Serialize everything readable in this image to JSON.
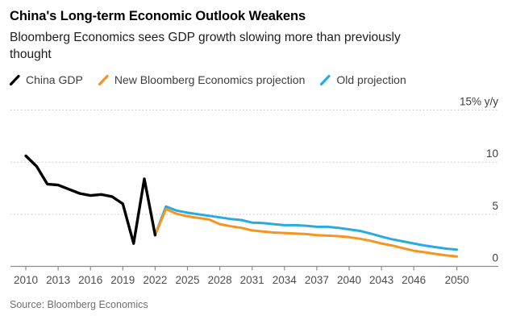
{
  "header": {
    "title": "China's Long-term Economic Outlook Weakens",
    "subtitle": "Bloomberg Economics sees GDP growth slowing more than previously thought"
  },
  "legend": {
    "items": [
      {
        "label": "China GDP",
        "color": "#000000"
      },
      {
        "label": "New Bloomberg Economics projection",
        "color": "#f7941e"
      },
      {
        "label": "Old projection",
        "color": "#29abe2"
      }
    ]
  },
  "footer": {
    "source": "Source: Bloomberg Economics"
  },
  "colors": {
    "actual_line": "#000000",
    "new_projection_line": "#f7941e",
    "old_projection_line": "#29abe2",
    "gridline": "#c3c3c3",
    "axis_line": "#8c8c8c"
  },
  "chart_data": {
    "type": "line",
    "title": "China's Long-term Economic Outlook Weakens",
    "subtitle": "Bloomberg Economics sees GDP growth slowing more than previously thought",
    "ylabel": "% y/y",
    "ylim": [
      0,
      15
    ],
    "xlim": [
      2008.5,
      2051.5
    ],
    "grid": "horizontal-dotted",
    "legend_position": "top-left",
    "y_ticks": [
      {
        "value": 15,
        "label": "15% y/y"
      },
      {
        "value": 10,
        "label": "10"
      },
      {
        "value": 5,
        "label": "5"
      },
      {
        "value": 0,
        "label": "0"
      }
    ],
    "x_ticks": [
      2010,
      2013,
      2016,
      2019,
      2022,
      2025,
      2028,
      2031,
      2034,
      2037,
      2040,
      2043,
      2046,
      2050
    ],
    "series": [
      {
        "name": "China GDP",
        "color": "#000000",
        "width": 3.4,
        "x": [
          2010,
          2011,
          2012,
          2013,
          2014,
          2015,
          2016,
          2017,
          2018,
          2019,
          2020,
          2021,
          2022
        ],
        "values": [
          10.6,
          9.6,
          7.9,
          7.8,
          7.4,
          7.0,
          6.8,
          6.9,
          6.7,
          6.0,
          2.2,
          8.4,
          3.0
        ]
      },
      {
        "name": "New Bloomberg Economics projection",
        "color": "#f7941e",
        "width": 3,
        "x": [
          2022,
          2023,
          2024,
          2025,
          2026,
          2027,
          2028,
          2029,
          2030,
          2031,
          2032,
          2033,
          2034,
          2035,
          2036,
          2037,
          2038,
          2039,
          2040,
          2041,
          2042,
          2043,
          2044,
          2045,
          2046,
          2047,
          2048,
          2049,
          2050
        ],
        "values": [
          3.0,
          5.5,
          5.05,
          4.8,
          4.65,
          4.5,
          4.05,
          3.85,
          3.7,
          3.45,
          3.35,
          3.25,
          3.2,
          3.15,
          3.1,
          3.0,
          2.95,
          2.9,
          2.8,
          2.65,
          2.45,
          2.2,
          2.0,
          1.75,
          1.5,
          1.35,
          1.2,
          1.05,
          0.95
        ]
      },
      {
        "name": "Old projection",
        "color": "#29abe2",
        "width": 3,
        "x": [
          2022,
          2023,
          2024,
          2025,
          2026,
          2027,
          2028,
          2029,
          2030,
          2031,
          2032,
          2033,
          2034,
          2035,
          2036,
          2037,
          2038,
          2039,
          2040,
          2041,
          2042,
          2043,
          2044,
          2045,
          2046,
          2047,
          2048,
          2049,
          2050
        ],
        "values": [
          3.0,
          5.75,
          5.35,
          5.15,
          5.0,
          4.85,
          4.7,
          4.55,
          4.45,
          4.2,
          4.15,
          4.05,
          3.95,
          3.95,
          3.9,
          3.8,
          3.8,
          3.7,
          3.55,
          3.4,
          3.15,
          2.85,
          2.6,
          2.4,
          2.2,
          2.0,
          1.85,
          1.7,
          1.6
        ]
      }
    ]
  }
}
